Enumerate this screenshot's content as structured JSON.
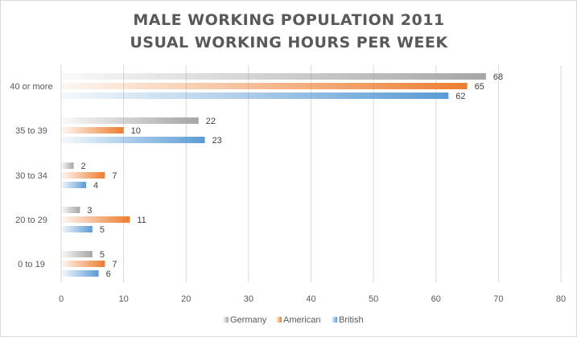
{
  "chart_data": {
    "type": "bar",
    "orientation": "horizontal",
    "title": [
      "MALE WORKING POPULATION 2011",
      "USUAL WORKING HOURS PER WEEK"
    ],
    "categories": [
      "40 or more",
      "35 to 39",
      "30 to 34",
      "20 to 29",
      "0 to 19"
    ],
    "series": [
      {
        "name": "Germany",
        "values": [
          68,
          22,
          2,
          3,
          5
        ],
        "color": "#a6a6a6"
      },
      {
        "name": "American",
        "values": [
          65,
          10,
          7,
          11,
          7
        ],
        "color": "#ed7d31"
      },
      {
        "name": "British",
        "values": [
          62,
          23,
          4,
          5,
          6
        ],
        "color": "#5b9bd5"
      }
    ],
    "xlim": [
      0,
      80
    ],
    "xticks": [
      "0",
      "10",
      "20",
      "30",
      "40",
      "50",
      "60",
      "70",
      "80"
    ],
    "xlabel": "",
    "ylabel": "",
    "grid": true,
    "legend": "bottom",
    "data_labels": true
  }
}
